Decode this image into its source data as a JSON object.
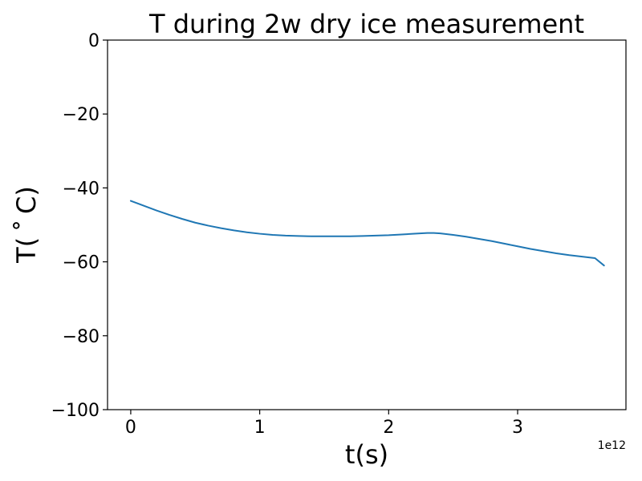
{
  "chart_data": {
    "type": "line",
    "title": "T during 2w dry ice measurement",
    "xlabel": "t(s)",
    "ylabel": "T($^\\circ$C)",
    "ylabel_display": "T( ˚ C)",
    "x_offset_label": "1e12",
    "xlim": [
      -0.18,
      3.84
    ],
    "ylim": [
      -100,
      0
    ],
    "x_ticks": [
      0,
      1,
      2,
      3
    ],
    "x_tick_labels": [
      "0",
      "1",
      "2",
      "3"
    ],
    "y_ticks": [
      0,
      -20,
      -40,
      -60,
      -80,
      -100
    ],
    "y_tick_labels": [
      "0",
      "−20",
      "−40",
      "−60",
      "−80",
      "−100"
    ],
    "grid": false,
    "series": [
      {
        "color": "#1f77b4",
        "x": [
          0.0,
          0.1,
          0.2,
          0.3,
          0.4,
          0.5,
          0.6,
          0.7,
          0.8,
          0.9,
          1.0,
          1.1,
          1.2,
          1.3,
          1.4,
          1.5,
          1.6,
          1.7,
          1.8,
          1.9,
          2.0,
          2.1,
          2.2,
          2.3,
          2.35,
          2.4,
          2.5,
          2.6,
          2.7,
          2.8,
          2.9,
          3.0,
          3.1,
          3.2,
          3.3,
          3.4,
          3.5,
          3.6,
          3.67
        ],
        "y": [
          -43.5,
          -44.8,
          -46.1,
          -47.3,
          -48.4,
          -49.4,
          -50.2,
          -50.9,
          -51.5,
          -52.0,
          -52.4,
          -52.7,
          -52.9,
          -53.0,
          -53.1,
          -53.1,
          -53.1,
          -53.1,
          -53.0,
          -52.9,
          -52.8,
          -52.6,
          -52.4,
          -52.2,
          -52.2,
          -52.3,
          -52.7,
          -53.2,
          -53.8,
          -54.4,
          -55.1,
          -55.8,
          -56.5,
          -57.1,
          -57.7,
          -58.2,
          -58.6,
          -59.0,
          -61.0
        ]
      }
    ]
  }
}
